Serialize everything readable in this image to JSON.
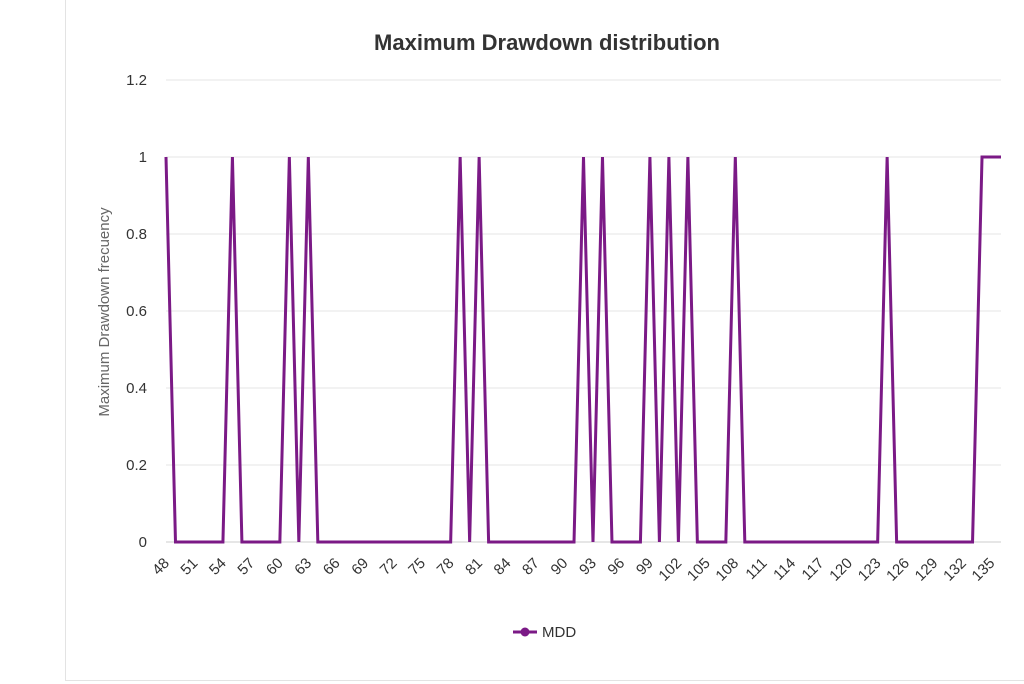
{
  "chart_data": {
    "type": "line",
    "title": "Maximum Drawdown distribution",
    "xlabel": "",
    "ylabel": "Maximum Drawdown frecuency",
    "ylim": [
      0,
      1.2
    ],
    "yticks": [
      "0",
      "0.2",
      "0.4",
      "0.6",
      "0.8",
      "1",
      "1.2"
    ],
    "xlim": [
      48,
      136
    ],
    "xticks": [
      "48",
      "51",
      "54",
      "57",
      "60",
      "63",
      "66",
      "69",
      "72",
      "75",
      "78",
      "81",
      "84",
      "87",
      "90",
      "93",
      "96",
      "99",
      "102",
      "105",
      "108",
      "111",
      "114",
      "117",
      "120",
      "123",
      "126",
      "129",
      "132",
      "135"
    ],
    "grid": "horizontal",
    "legend": "bottom",
    "colors": {
      "series": "#7b1a86"
    },
    "series": [
      {
        "name": "MDD",
        "x": [
          48,
          49,
          54,
          55,
          56,
          60,
          61,
          62,
          63,
          64,
          78,
          79,
          80,
          81,
          82,
          91,
          92,
          93,
          94,
          95,
          98,
          99,
          100,
          101,
          102,
          103,
          104,
          107,
          108,
          109,
          123,
          124,
          125,
          133,
          134,
          135,
          136
        ],
        "y": [
          1,
          0,
          0,
          1,
          0,
          0,
          1,
          0,
          1,
          0,
          0,
          1,
          0,
          1,
          0,
          0,
          1,
          0,
          1,
          0,
          0,
          1,
          0,
          1,
          0,
          1,
          0,
          0,
          1,
          0,
          0,
          1,
          0,
          0,
          1,
          1,
          1
        ]
      }
    ]
  }
}
